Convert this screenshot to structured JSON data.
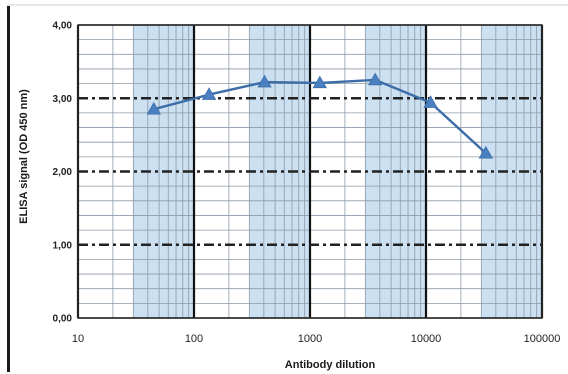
{
  "chart_data": {
    "type": "line",
    "title": "",
    "xlabel": "Antibody dilution",
    "ylabel": "ELISA signal (OD 450 nm)",
    "x_scale": "log",
    "xlim": [
      10,
      100000
    ],
    "ylim": [
      0,
      4
    ],
    "x_ticks": [
      10,
      100,
      1000,
      10000,
      100000
    ],
    "x_tick_labels": [
      "10",
      "100",
      "1000",
      "10000",
      "100000"
    ],
    "y_ticks": [
      0,
      1,
      2,
      3,
      4
    ],
    "y_tick_labels": [
      "0,00",
      "1,00",
      "2,00",
      "3,00",
      "4,00"
    ],
    "grid": true,
    "legend": "none",
    "series": [
      {
        "marker": "triangle",
        "x": [
          45,
          135,
          405,
          1215,
          3645,
          10935,
          32805
        ],
        "y": [
          2.85,
          3.05,
          3.22,
          3.21,
          3.25,
          2.94,
          2.25
        ]
      }
    ],
    "colors": {
      "series": "#3d6da8",
      "marker": "#4a80c2",
      "band": "#b9d6ec",
      "minor_grid": "#8c9aa8",
      "major_v": "#111111",
      "dash_h": "#222222"
    }
  }
}
